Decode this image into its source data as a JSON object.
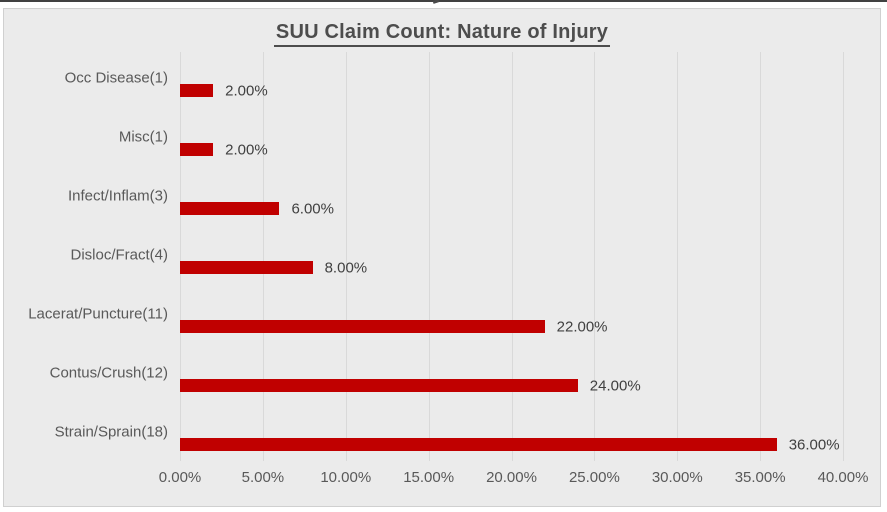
{
  "chart_data": {
    "type": "bar",
    "orientation": "horizontal",
    "title": "SUU Claim Count: Nature of Injury",
    "categories": [
      "Occ Disease(1)",
      "Misc(1)",
      "Infect/Inflam(3)",
      "Disloc/Fract(4)",
      "Lacerat/Puncture(11)",
      "Contus/Crush(12)",
      "Strain/Sprain(18)"
    ],
    "values": [
      2,
      2,
      6,
      8,
      22,
      24,
      36
    ],
    "value_labels": [
      "2.00%",
      "2.00%",
      "6.00%",
      "8.00%",
      "22.00%",
      "24.00%",
      "36.00%"
    ],
    "x_axis": {
      "min": 0,
      "max": 40,
      "tick_step": 5,
      "tick_labels": [
        "0.00%",
        "5.00%",
        "10.00%",
        "15.00%",
        "20.00%",
        "25.00%",
        "30.00%",
        "35.00%",
        "40.00%"
      ]
    },
    "legend": "none",
    "gridlines": "vertical",
    "data_label_position": "outside-end",
    "colors": {
      "bar": "#C00000",
      "plot_background": "#EBEBEB",
      "gridline": "#D9D9D9",
      "title_text": "#4D4D4D",
      "axis_text": "#595959",
      "data_label_text": "#404040"
    }
  }
}
